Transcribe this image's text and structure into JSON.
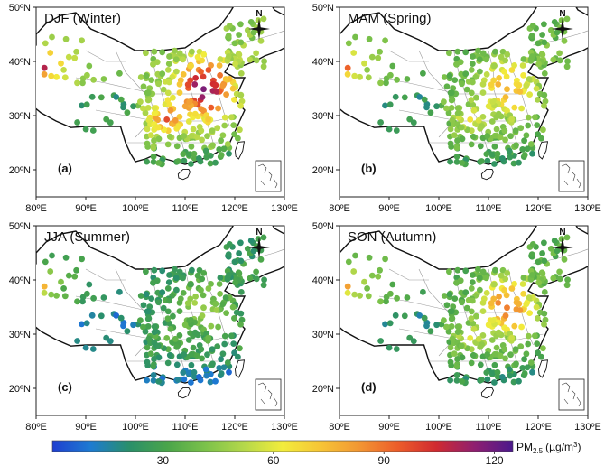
{
  "panels": [
    {
      "id": "a",
      "title": "DJF (Winter)",
      "label": "(a)",
      "season": "winter"
    },
    {
      "id": "b",
      "title": "MAM (Spring)",
      "label": "(b)",
      "season": "spring"
    },
    {
      "id": "c",
      "title": "JJA (Summer)",
      "label": "(c)",
      "season": "summer"
    },
    {
      "id": "d",
      "title": "SON (Autumn)",
      "label": "(d)",
      "season": "autumn"
    }
  ],
  "axes": {
    "lon_ticks": [
      "80ºE",
      "90ºE",
      "100ºE",
      "110ºE",
      "120ºE",
      "130ºE"
    ],
    "lat_ticks": [
      "50ºN",
      "40ºN",
      "30ºN",
      "20ºN"
    ],
    "lon_range": [
      80,
      130
    ],
    "lat_range": [
      15,
      50
    ]
  },
  "north_arrow": {
    "label": "N"
  },
  "colorbar": {
    "ticks": [
      "30",
      "60",
      "90",
      "120"
    ],
    "tick_values": [
      30,
      60,
      90,
      120
    ],
    "range": [
      0,
      125
    ],
    "label_main": "PM",
    "label_sub": "2.5",
    "label_unit": "(µg/m",
    "label_unit_sup": "3",
    "label_unit_close": ")",
    "colors": [
      "#1f3fd0",
      "#1d7bd1",
      "#2a8f6a",
      "#4aa54a",
      "#7cc24a",
      "#b5d84a",
      "#f2ec3c",
      "#f6c436",
      "#f29633",
      "#ec5d2a",
      "#d02a30",
      "#8f1f70",
      "#4b1a8c"
    ]
  },
  "colors": {
    "land": "#ffffff",
    "border": "#111111",
    "province": "#9a9a9a"
  }
}
